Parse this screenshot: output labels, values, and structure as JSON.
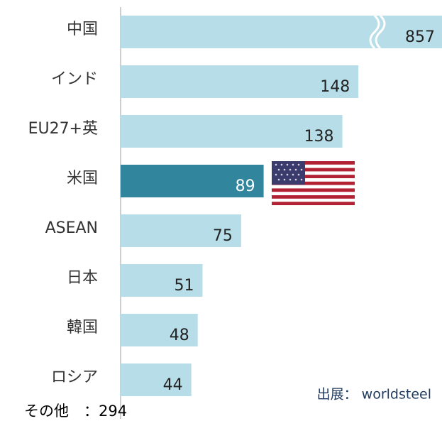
{
  "chart_data": {
    "type": "bar",
    "orientation": "horizontal",
    "categories": [
      "中国",
      "インド",
      "EU27+英",
      "米国",
      "ASEAN",
      "日本",
      "韓国",
      "ロシア"
    ],
    "values": [
      857,
      148,
      138,
      89,
      75,
      51,
      48,
      44
    ],
    "colors": [
      "#b7dde8",
      "#b7dde8",
      "#b7dde8",
      "#31859c",
      "#b7dde8",
      "#b7dde8",
      "#b7dde8",
      "#b7dde8"
    ],
    "xlim": [
      0,
      200
    ],
    "axis_break": true,
    "annotations": [
      "出展： worldsteel",
      "その他　：294"
    ]
  }
}
